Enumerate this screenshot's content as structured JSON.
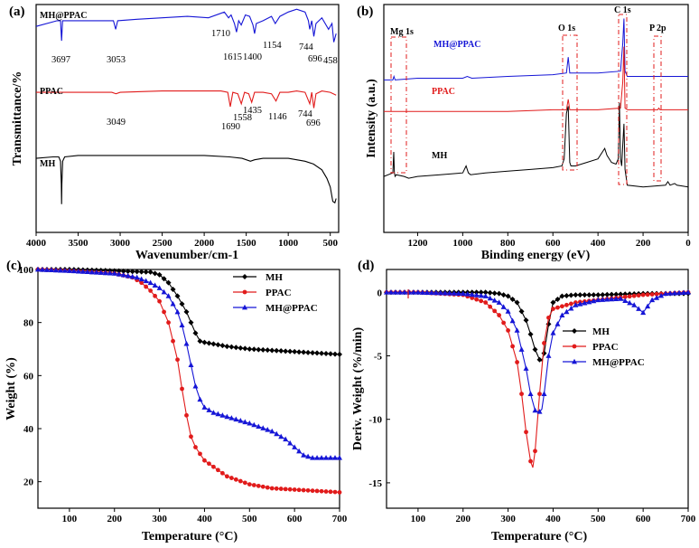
{
  "chart_data": [
    {
      "panel": "(a)",
      "type": "line",
      "xlabel": "Wavenumber/cm-1",
      "ylabel": "Transmittance/%",
      "xlim": [
        4000,
        400
      ],
      "x_ticks": [
        4000,
        3500,
        3000,
        2500,
        2000,
        1500,
        1000,
        500
      ],
      "series": [
        {
          "name": "MH@PPAC",
          "color": "#1515d6",
          "x": [
            4000,
            3750,
            3710,
            3697,
            3685,
            3600,
            3300,
            3080,
            3053,
            3030,
            2800,
            2500,
            2200,
            1950,
            1760,
            1710,
            1680,
            1640,
            1615,
            1590,
            1560,
            1510,
            1460,
            1420,
            1400,
            1380,
            1300,
            1200,
            1154,
            1100,
            1000,
            900,
            800,
            760,
            744,
            720,
            696,
            670,
            600,
            520,
            480,
            458,
            430
          ],
          "y": [
            80,
            84,
            84,
            70,
            84,
            84,
            84,
            84,
            78,
            84,
            85,
            86,
            87,
            86,
            90,
            86,
            88,
            82,
            76,
            84,
            81,
            88,
            87,
            81,
            75,
            82,
            84,
            87,
            82,
            87,
            90,
            92,
            90,
            84,
            78,
            84,
            73,
            82,
            86,
            78,
            82,
            69,
            75
          ],
          "annotations": [
            "3697",
            "3053",
            "1710",
            "1615",
            "1400",
            "1154",
            "744",
            "696",
            "458"
          ]
        },
        {
          "name": "PPAC",
          "color": "#e11b1b",
          "x": [
            4000,
            3500,
            3100,
            3049,
            3000,
            2500,
            2000,
            1800,
            1720,
            1690,
            1660,
            1600,
            1558,
            1520,
            1470,
            1435,
            1400,
            1300,
            1200,
            1146,
            1100,
            1000,
            900,
            800,
            744,
            720,
            696,
            670,
            600,
            500,
            430
          ],
          "y": [
            34,
            34,
            34,
            33,
            34,
            35,
            35,
            35,
            34,
            24,
            34,
            33,
            26,
            34,
            33,
            27,
            34,
            34,
            33,
            28,
            34,
            34,
            35,
            34,
            26,
            34,
            23,
            33,
            35,
            34,
            32
          ],
          "annotations": [
            "3049",
            "1690",
            "1558",
            "1435",
            "1146",
            "744",
            "696"
          ]
        },
        {
          "name": "MH",
          "color": "#000000",
          "x": [
            4000,
            3800,
            3730,
            3710,
            3700,
            3697,
            3694,
            3684,
            3660,
            3500,
            3000,
            2500,
            2000,
            1700,
            1550,
            1450,
            1400,
            1300,
            1200,
            1000,
            900,
            800,
            700,
            600,
            540,
            500,
            470,
            445,
            430
          ],
          "y": [
            -12,
            -11,
            -11,
            -14,
            -30,
            -44,
            -30,
            -14,
            -11,
            -10,
            -10,
            -10,
            -10,
            -11,
            -12,
            -14,
            -13,
            -12,
            -12,
            -12,
            -13,
            -14,
            -16,
            -20,
            -26,
            -32,
            -42,
            -43,
            -40
          ]
        }
      ]
    },
    {
      "panel": "(b)",
      "type": "line",
      "xlabel": "Binding energy (eV)",
      "ylabel": "Intensity (a.u.)",
      "xlim": [
        1350,
        0
      ],
      "x_ticks": [
        1200,
        1000,
        800,
        600,
        400,
        200,
        0
      ],
      "peak_labels": [
        "Mg 1s",
        "O 1s",
        "C 1s",
        "P 2p"
      ],
      "series": [
        {
          "name": "MH@PPAC",
          "color": "#1515d6",
          "x": [
            1350,
            1310,
            1305,
            1300,
            1200,
            1000,
            980,
            960,
            800,
            600,
            540,
            532,
            525,
            500,
            400,
            300,
            290,
            285,
            280,
            270,
            200,
            100,
            0
          ],
          "y": [
            57,
            57,
            59,
            57,
            58,
            58,
            59,
            58,
            59,
            60,
            61,
            70,
            61,
            61,
            61,
            62,
            78,
            92,
            62,
            59,
            59,
            59,
            59
          ]
        },
        {
          "name": "PPAC",
          "color": "#e11b1b",
          "x": [
            1350,
            1200,
            1000,
            800,
            600,
            540,
            532,
            525,
            500,
            400,
            300,
            290,
            285,
            280,
            270,
            200,
            135,
            130,
            125,
            100,
            0
          ],
          "y": [
            39,
            39,
            39,
            39,
            40,
            40,
            46,
            40,
            40,
            40,
            41,
            56,
            76,
            41,
            40,
            40,
            40,
            41,
            40,
            40,
            40
          ]
        },
        {
          "name": "MH",
          "color": "#000000",
          "x": [
            1350,
            1310,
            1306,
            1303,
            1300,
            1295,
            1260,
            1240,
            1200,
            1100,
            1000,
            985,
            975,
            965,
            900,
            800,
            700,
            600,
            560,
            550,
            540,
            532,
            525,
            520,
            500,
            450,
            400,
            370,
            360,
            340,
            320,
            310,
            305,
            300,
            295,
            290,
            285,
            280,
            270,
            200,
            100,
            90,
            80,
            60,
            50,
            0
          ],
          "y": [
            2,
            4,
            16,
            4,
            2,
            3,
            2,
            1,
            2,
            3,
            4,
            8,
            4,
            3,
            4,
            5,
            6,
            7,
            8,
            12,
            38,
            42,
            10,
            8,
            8,
            10,
            12,
            18,
            14,
            10,
            9,
            12,
            44,
            12,
            8,
            20,
            32,
            6,
            -3,
            -4,
            -3,
            -1,
            -3,
            -2,
            -3,
            -4
          ]
        }
      ]
    },
    {
      "panel": "(c)",
      "type": "line",
      "xlabel": "Temperature (°C)",
      "ylabel": "Weight (%)",
      "xlim": [
        30,
        700
      ],
      "ylim": [
        10,
        100
      ],
      "x_ticks": [
        100,
        200,
        300,
        400,
        500,
        600,
        700
      ],
      "y_ticks": [
        20,
        40,
        60,
        80,
        100
      ],
      "legend": "top-right",
      "series": [
        {
          "name": "MH",
          "color": "#000000",
          "marker": "diamond",
          "x": [
            30,
            100,
            200,
            280,
            300,
            320,
            340,
            360,
            370,
            380,
            390,
            400,
            450,
            500,
            550,
            600,
            650,
            700
          ],
          "y": [
            100,
            100,
            99.5,
            99,
            98,
            95,
            90,
            84,
            80,
            76,
            73,
            72.5,
            71,
            70,
            69.5,
            69,
            68.5,
            68
          ]
        },
        {
          "name": "PPAC",
          "color": "#e11b1b",
          "marker": "circle",
          "x": [
            30,
            100,
            200,
            240,
            260,
            280,
            300,
            320,
            340,
            350,
            360,
            370,
            380,
            400,
            450,
            500,
            550,
            600,
            650,
            700
          ],
          "y": [
            100,
            99.5,
            98.5,
            97,
            95,
            92,
            88,
            80,
            66,
            55,
            45,
            37,
            33,
            28,
            22,
            19,
            17.5,
            17,
            16.5,
            16
          ]
        },
        {
          "name": "MH@PPAC",
          "color": "#1515d6",
          "marker": "triangle",
          "x": [
            30,
            100,
            200,
            250,
            280,
            300,
            320,
            340,
            350,
            360,
            370,
            380,
            390,
            400,
            420,
            450,
            500,
            550,
            580,
            600,
            620,
            640,
            660,
            700
          ],
          "y": [
            100,
            99.5,
            98.5,
            97,
            95,
            93,
            90,
            84,
            79,
            72,
            64,
            56,
            51,
            48,
            46,
            44.5,
            42,
            39,
            36,
            33,
            30,
            29,
            29,
            29
          ]
        }
      ]
    },
    {
      "panel": "(d)",
      "type": "line",
      "xlabel": "Temperature (°C)",
      "ylabel": "Deriv. Weight (%/min)",
      "xlim": [
        30,
        700
      ],
      "ylim": [
        -17,
        1.8
      ],
      "x_ticks": [
        100,
        200,
        300,
        400,
        500,
        600,
        700
      ],
      "y_ticks": [
        0,
        -5,
        -10,
        -15
      ],
      "legend": "upper-middle",
      "series": [
        {
          "name": "MH",
          "color": "#000000",
          "marker": "diamond",
          "x": [
            30,
            100,
            200,
            250,
            280,
            300,
            320,
            340,
            350,
            360,
            370,
            375,
            380,
            390,
            400,
            420,
            450,
            500,
            600,
            700
          ],
          "y": [
            0,
            0,
            0,
            0,
            -0.1,
            -0.3,
            -0.8,
            -2.2,
            -3.3,
            -4.5,
            -5.3,
            -5.4,
            -4.8,
            -2.5,
            -0.8,
            -0.3,
            -0.2,
            -0.2,
            -0.1,
            -0.1
          ]
        },
        {
          "name": "PPAC",
          "color": "#e11b1b",
          "marker": "circle",
          "x": [
            30,
            100,
            200,
            250,
            280,
            300,
            320,
            330,
            340,
            350,
            355,
            360,
            370,
            380,
            390,
            400,
            450,
            500,
            550,
            600,
            650,
            700
          ],
          "y": [
            0,
            0,
            -0.2,
            -0.8,
            -1.8,
            -3,
            -5.5,
            -8,
            -11,
            -13.3,
            -13.8,
            -12.5,
            -8,
            -4,
            -2,
            -1.3,
            -0.8,
            -0.6,
            -0.4,
            -0.2,
            -0.1,
            0
          ]
        },
        {
          "name": "MH@PPAC",
          "color": "#1515d6",
          "marker": "triangle",
          "x": [
            30,
            100,
            200,
            250,
            280,
            300,
            320,
            340,
            350,
            360,
            365,
            370,
            375,
            380,
            390,
            400,
            420,
            450,
            500,
            550,
            580,
            600,
            620,
            650,
            700
          ],
          "y": [
            0,
            0,
            -0.1,
            -0.3,
            -0.8,
            -1.5,
            -3,
            -6,
            -8,
            -9.3,
            -9.4,
            -9.4,
            -9.2,
            -8,
            -5,
            -3.2,
            -1.8,
            -1,
            -0.6,
            -0.5,
            -1,
            -1.6,
            -0.6,
            -0.1,
            0
          ]
        }
      ]
    }
  ]
}
